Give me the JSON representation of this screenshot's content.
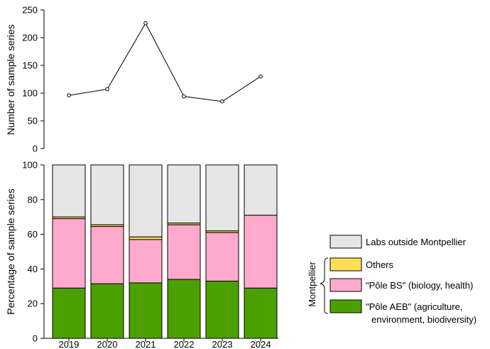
{
  "chart_data": [
    {
      "type": "line",
      "ylabel": "Number of sample series",
      "x": [
        "2019",
        "2020",
        "2021",
        "2022",
        "2023",
        "2024"
      ],
      "values": [
        96,
        107,
        226,
        94,
        85,
        130
      ],
      "ylim": [
        0,
        250
      ],
      "yticks": [
        "0",
        "50",
        "100",
        "150",
        "200",
        "250"
      ],
      "grid": false
    },
    {
      "type": "bar",
      "stacked": true,
      "ylabel": "Percentage of sample series",
      "categories": [
        "2019",
        "2020",
        "2021",
        "2022",
        "2023",
        "2024"
      ],
      "yticks": [
        "0",
        "20",
        "40",
        "60",
        "80",
        "100"
      ],
      "ylim": [
        0,
        100
      ],
      "series": [
        {
          "name": "\"Pôle AEB\" (agriculture, environment, biodiversity)",
          "color": "#4ba000",
          "values": [
            29,
            31.5,
            32,
            34,
            33,
            29
          ]
        },
        {
          "name": "\"Pôle BS\" (biology, health)",
          "color": "#ffaacc",
          "values": [
            40,
            33,
            25,
            31.5,
            28,
            42
          ]
        },
        {
          "name": "Others",
          "color": "#ffdd55",
          "values": [
            1,
            1,
            1.5,
            1,
            1,
            0
          ]
        },
        {
          "name": "Labs outside Montpellier",
          "color": "#e6e6e6",
          "values": [
            30,
            34.5,
            41.5,
            33.5,
            38,
            29
          ]
        }
      ],
      "grid": false,
      "legend_position": "right"
    }
  ],
  "legend": {
    "group_label": "Montpellier",
    "items": [
      {
        "line1": "Labs outside Montpellier",
        "line2": "",
        "color": "#e6e6e6"
      },
      {
        "line1": "Others",
        "line2": "",
        "color": "#ffdd55"
      },
      {
        "line1": "\"Pôle BS\" (biology, health)",
        "line2": "",
        "color": "#ffaacc"
      },
      {
        "line1": "\"Pôle AEB\" (agriculture,",
        "line2": "environment, biodiversity)",
        "color": "#4ba000"
      }
    ]
  }
}
